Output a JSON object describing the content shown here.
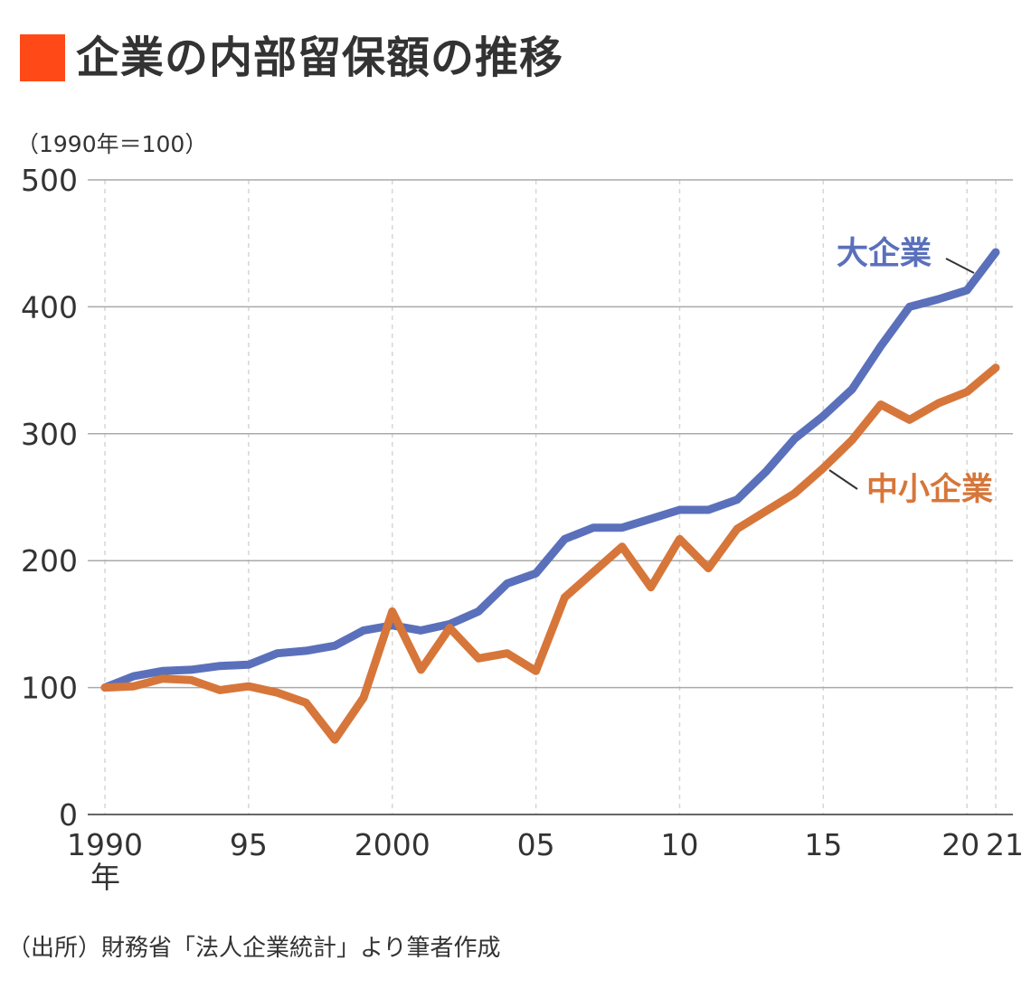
{
  "title": "企業の内部留保額の推移",
  "unit_note": "（1990年＝100）",
  "source": "（出所）財務省「法人企業統計」より筆者作成",
  "colors": {
    "accent_square": "#ff4a17",
    "large": "#5a70bb",
    "small": "#d7763a",
    "grid": "#aaaaaa",
    "vgrid": "#d6d6d6"
  },
  "chart_data": {
    "type": "line",
    "title": "企業の内部留保額の推移",
    "xlabel": "",
    "ylabel": "（1990年＝100）",
    "ylim": [
      0,
      500
    ],
    "xlim": [
      1990,
      2021
    ],
    "grid": true,
    "y_ticks": [
      "0",
      "100",
      "200",
      "300",
      "400",
      "500"
    ],
    "x_ticks": [
      {
        "value": 1990,
        "label": "1990",
        "sublabel": "年"
      },
      {
        "value": 1995,
        "label": "95"
      },
      {
        "value": 2000,
        "label": "2000"
      },
      {
        "value": 2005,
        "label": "05"
      },
      {
        "value": 2010,
        "label": "10"
      },
      {
        "value": 2015,
        "label": "15"
      },
      {
        "value": 2020,
        "label": "20"
      },
      {
        "value": 2021,
        "label": "21"
      }
    ],
    "x": [
      1990,
      1991,
      1992,
      1993,
      1994,
      1995,
      1996,
      1997,
      1998,
      1999,
      2000,
      2001,
      2002,
      2003,
      2004,
      2005,
      2006,
      2007,
      2008,
      2009,
      2010,
      2011,
      2012,
      2013,
      2014,
      2015,
      2016,
      2017,
      2018,
      2019,
      2020,
      2021
    ],
    "series": [
      {
        "name": "大企業",
        "color": "#5a70bb",
        "values": [
          100,
          109,
          113,
          114,
          117,
          118,
          127,
          129,
          133,
          145,
          149,
          145,
          150,
          160,
          182,
          190,
          217,
          226,
          226,
          233,
          240,
          240,
          248,
          270,
          296,
          314,
          335,
          369,
          400,
          406,
          413,
          443
        ]
      },
      {
        "name": "中小企業",
        "color": "#d7763a",
        "values": [
          100,
          101,
          107,
          106,
          98,
          101,
          96,
          88,
          59,
          92,
          160,
          114,
          147,
          123,
          127,
          113,
          171,
          191,
          211,
          179,
          217,
          194,
          225,
          239,
          253,
          273,
          295,
          323,
          311,
          324,
          333,
          352
        ]
      }
    ]
  }
}
